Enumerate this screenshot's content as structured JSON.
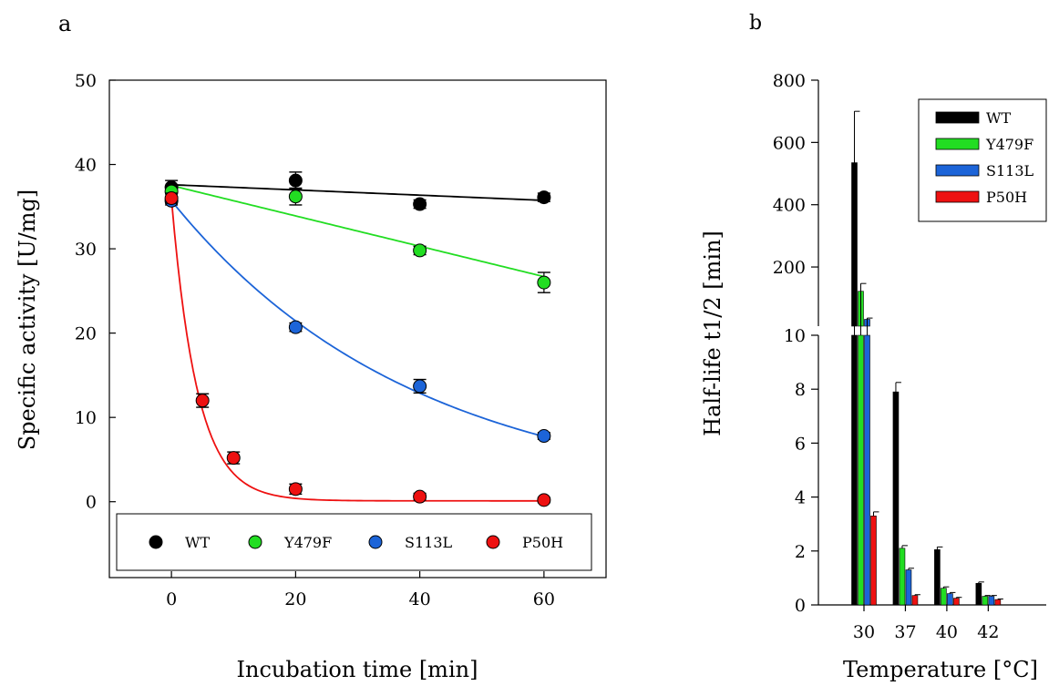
{
  "chart_data": [
    {
      "panel_label": "a",
      "type": "scatter",
      "xlabel": "Incubation time [min]",
      "ylabel": "Specific activity [U/mg]",
      "xlim": [
        -10,
        70
      ],
      "ylim": [
        -9,
        50
      ],
      "xticks": [
        0,
        20,
        40,
        60
      ],
      "yticks": [
        0,
        10,
        20,
        30,
        40,
        50
      ],
      "legend_position": "bottom inside plot",
      "series": [
        {
          "name": "WT",
          "color": "#000000",
          "points": [
            {
              "x": 0,
              "y": 37.3,
              "err": 0.8
            },
            {
              "x": 20,
              "y": 38.1,
              "err": 1.0
            },
            {
              "x": 40,
              "y": 35.3,
              "err": 0.5
            },
            {
              "x": 60,
              "y": 36.1,
              "err": 0.5
            }
          ],
          "fit": {
            "type": "linear",
            "a": 37.6,
            "b": -0.031
          }
        },
        {
          "name": "Y479F",
          "color": "#22dd22",
          "points": [
            {
              "x": 0,
              "y": 36.8,
              "err": 0.6
            },
            {
              "x": 20,
              "y": 36.2,
              "err": 1.0
            },
            {
              "x": 40,
              "y": 29.8,
              "err": 0.5
            },
            {
              "x": 60,
              "y": 26.0,
              "err": 1.2
            }
          ],
          "fit": {
            "type": "linear",
            "a": 37.5,
            "b": -0.18
          }
        },
        {
          "name": "S113L",
          "color": "#1c64d8",
          "points": [
            {
              "x": 0,
              "y": 35.7,
              "err": 0.5
            },
            {
              "x": 20,
              "y": 20.7,
              "err": 0.5
            },
            {
              "x": 40,
              "y": 13.7,
              "err": 0.8
            },
            {
              "x": 60,
              "y": 7.8,
              "err": 0.4
            }
          ],
          "fit": {
            "type": "exp",
            "a": 35.7,
            "k": 0.0255,
            "c": 0
          }
        },
        {
          "name": "P50H",
          "color": "#ee1111",
          "points": [
            {
              "x": 0,
              "y": 36.0,
              "err": 0.6
            },
            {
              "x": 5,
              "y": 12.0,
              "err": 0.8
            },
            {
              "x": 10,
              "y": 5.2,
              "err": 0.7
            },
            {
              "x": 20,
              "y": 1.5,
              "err": 0.6
            },
            {
              "x": 40,
              "y": 0.6,
              "err": 0.4
            },
            {
              "x": 60,
              "y": 0.2,
              "err": 0.3
            }
          ],
          "fit": {
            "type": "exp",
            "a": 35.9,
            "k": 0.24,
            "c": 0.1
          }
        }
      ]
    },
    {
      "panel_label": "b",
      "type": "bar",
      "xlabel": "Temperature [°C]",
      "ylabel": "Half-life t1/2 [min]",
      "categories": [
        "30",
        "37",
        "40",
        "42"
      ],
      "axis_break": {
        "lower_ylim": [
          0,
          10
        ],
        "upper_ylim": [
          10,
          800
        ]
      },
      "upper_yticks": [
        200,
        400,
        600,
        800
      ],
      "lower_yticks": [
        0,
        2,
        4,
        6,
        8,
        10
      ],
      "legend_position": "top-right",
      "series": [
        {
          "name": "WT",
          "color": "#000000",
          "values": [
            535,
            7.9,
            2.05,
            0.8
          ],
          "errors": [
            165,
            0.35,
            0.1,
            0.05
          ]
        },
        {
          "name": "Y479F",
          "color": "#22dd22",
          "values": [
            122,
            2.1,
            0.62,
            0.32
          ],
          "errors": [
            25,
            0.1,
            0.05,
            0.03
          ]
        },
        {
          "name": "S113L",
          "color": "#1c64d8",
          "values": [
            32,
            1.3,
            0.42,
            0.32
          ],
          "errors": [
            4,
            0.06,
            0.04,
            0.03
          ]
        },
        {
          "name": "P50H",
          "color": "#ee1111",
          "values": [
            3.3,
            0.35,
            0.25,
            0.2
          ],
          "errors": [
            0.15,
            0.03,
            0.03,
            0.02
          ]
        }
      ]
    }
  ]
}
